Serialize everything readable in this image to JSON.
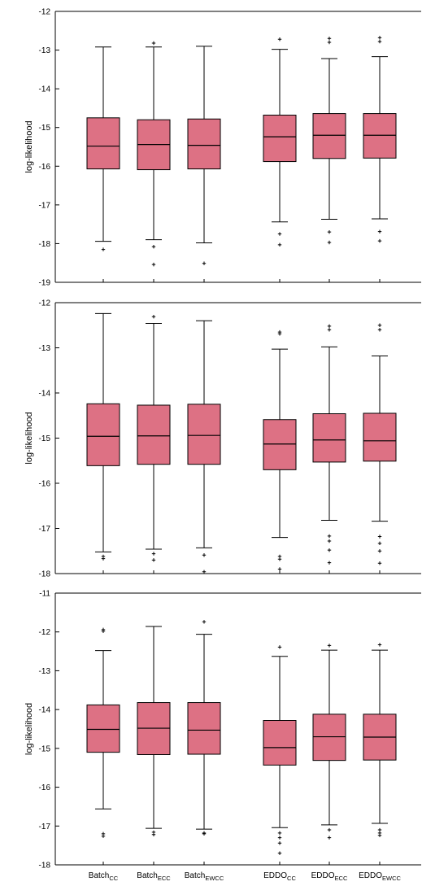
{
  "chart_data": [
    {
      "type": "box",
      "ylabel": "log-likelihood",
      "ylim": [
        -19,
        -12
      ],
      "yticks": [
        -12,
        -13,
        -14,
        -15,
        -16,
        -17,
        -18,
        -19
      ],
      "grid": false,
      "box_color": "#dd7184",
      "series": [
        {
          "name": "Batch_CC",
          "whisker_high": -12.92,
          "q3": -14.75,
          "median": -15.48,
          "q1": -16.07,
          "whisker_low": -17.94,
          "outliers": [
            -18.15
          ]
        },
        {
          "name": "Batch_ECC",
          "whisker_high": -12.92,
          "q3": -14.8,
          "median": -15.44,
          "q1": -16.09,
          "whisker_low": -17.9,
          "outliers": [
            -12.82,
            -18.08,
            -18.54
          ]
        },
        {
          "name": "Batch_EWCC",
          "whisker_high": -12.9,
          "q3": -14.78,
          "median": -15.46,
          "q1": -16.07,
          "whisker_low": -17.98,
          "outliers": [
            -18.51
          ]
        },
        {
          "name": "EDDO_CC",
          "whisker_high": -12.98,
          "q3": -14.68,
          "median": -15.24,
          "q1": -15.88,
          "whisker_low": -17.44,
          "outliers": [
            -12.72,
            -17.75,
            -18.03
          ]
        },
        {
          "name": "EDDO_ECC",
          "whisker_high": -13.22,
          "q3": -14.64,
          "median": -15.2,
          "q1": -15.8,
          "whisker_low": -17.37,
          "outliers": [
            -12.7,
            -12.8,
            -17.7,
            -17.97
          ]
        },
        {
          "name": "EDDO_EWCC",
          "whisker_high": -13.17,
          "q3": -14.64,
          "median": -15.2,
          "q1": -15.79,
          "whisker_low": -17.36,
          "outliers": [
            -12.68,
            -12.78,
            -17.69,
            -17.93
          ]
        }
      ]
    },
    {
      "type": "box",
      "ylabel": "log-likelihood",
      "ylim": [
        -18,
        -12
      ],
      "yticks": [
        -12,
        -13,
        -14,
        -15,
        -16,
        -17,
        -18
      ],
      "grid": false,
      "box_color": "#dd7184",
      "series": [
        {
          "name": "Batch_CC",
          "whisker_high": -12.24,
          "q3": -14.24,
          "median": -14.96,
          "q1": -15.61,
          "whisker_low": -17.52,
          "outliers": [
            -17.62,
            -17.67
          ]
        },
        {
          "name": "Batch_ECC",
          "whisker_high": -12.46,
          "q3": -14.27,
          "median": -14.95,
          "q1": -15.58,
          "whisker_low": -17.46,
          "outliers": [
            -12.31,
            -17.56,
            -17.7
          ]
        },
        {
          "name": "Batch_EWCC",
          "whisker_high": -12.4,
          "q3": -14.25,
          "median": -14.94,
          "q1": -15.58,
          "whisker_low": -17.43,
          "outliers": [
            -17.59,
            -17.96
          ]
        },
        {
          "name": "EDDO_CC",
          "whisker_high": -13.03,
          "q3": -14.59,
          "median": -15.13,
          "q1": -15.7,
          "whisker_low": -17.2,
          "outliers": [
            -12.65,
            -12.69,
            -17.62,
            -17.68,
            -17.9
          ]
        },
        {
          "name": "EDDO_ECC",
          "whisker_high": -12.98,
          "q3": -14.46,
          "median": -15.04,
          "q1": -15.53,
          "whisker_low": -16.82,
          "outliers": [
            -12.52,
            -12.6,
            -17.17,
            -17.28,
            -17.48,
            -17.76
          ]
        },
        {
          "name": "EDDO_EWCC",
          "whisker_high": -13.18,
          "q3": -14.45,
          "median": -15.06,
          "q1": -15.51,
          "whisker_low": -16.84,
          "outliers": [
            -12.5,
            -12.6,
            -17.18,
            -17.33,
            -17.5,
            -17.77
          ]
        }
      ]
    },
    {
      "type": "box",
      "ylabel": "log-likelihood",
      "ylim": [
        -18,
        -11
      ],
      "yticks": [
        -11,
        -12,
        -13,
        -14,
        -15,
        -16,
        -17,
        -18
      ],
      "grid": false,
      "box_color": "#dd7184",
      "categories": [
        {
          "base": "Batch",
          "sub": "CC"
        },
        {
          "base": "Batch",
          "sub": "ECC"
        },
        {
          "base": "Batch",
          "sub": "EWCC"
        },
        {
          "base": "EDDO",
          "sub": "CC"
        },
        {
          "base": "EDDO",
          "sub": "ECC"
        },
        {
          "base": "EDDO",
          "sub": "EWCC"
        }
      ],
      "series": [
        {
          "name": "Batch_CC",
          "whisker_high": -12.48,
          "q3": -13.88,
          "median": -14.51,
          "q1": -15.1,
          "whisker_low": -16.56,
          "outliers": [
            -11.94,
            -11.98,
            -17.2,
            -17.26
          ]
        },
        {
          "name": "Batch_ECC",
          "whisker_high": -11.86,
          "q3": -13.82,
          "median": -14.48,
          "q1": -15.16,
          "whisker_low": -17.06,
          "outliers": [
            -17.16,
            -17.22
          ]
        },
        {
          "name": "Batch_EWCC",
          "whisker_high": -12.06,
          "q3": -13.82,
          "median": -14.53,
          "q1": -15.15,
          "whisker_low": -17.08,
          "outliers": [
            -11.74,
            -17.18,
            -17.2
          ]
        },
        {
          "name": "EDDO_CC",
          "whisker_high": -12.63,
          "q3": -14.28,
          "median": -14.98,
          "q1": -15.43,
          "whisker_low": -17.04,
          "outliers": [
            -12.39,
            -17.18,
            -17.3,
            -17.44,
            -17.7
          ]
        },
        {
          "name": "EDDO_ECC",
          "whisker_high": -12.47,
          "q3": -14.12,
          "median": -14.7,
          "q1": -15.31,
          "whisker_low": -16.97,
          "outliers": [
            -12.35,
            -17.1,
            -17.3
          ]
        },
        {
          "name": "EDDO_EWCC",
          "whisker_high": -12.47,
          "q3": -14.12,
          "median": -14.71,
          "q1": -15.3,
          "whisker_low": -16.93,
          "outliers": [
            -12.33,
            -17.1,
            -17.18,
            -17.24
          ]
        }
      ]
    }
  ]
}
